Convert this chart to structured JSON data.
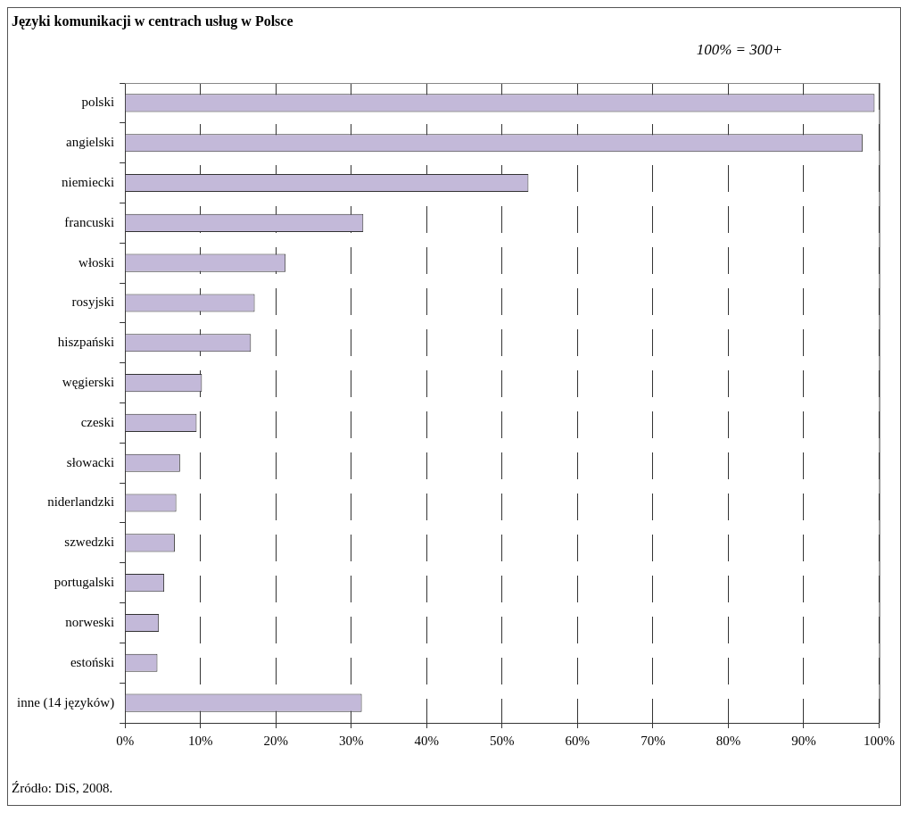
{
  "chart_data": {
    "type": "bar",
    "orientation": "horizontal",
    "title": "Języki komunikacji w centrach usług w Polsce",
    "categories": [
      "polski",
      "angielski",
      "niemiecki",
      "francuski",
      "włoski",
      "rosyjski",
      "hiszpański",
      "węgierski",
      "czeski",
      "słowacki",
      "niderlandzki",
      "szwedzki",
      "portugalski",
      "norweski",
      "estoński",
      "inne (14 języków)"
    ],
    "values": [
      99.4,
      97.8,
      53.5,
      31.6,
      21.3,
      17.2,
      16.7,
      10.2,
      9.5,
      7.3,
      6.8,
      6.6,
      5.2,
      4.5,
      4.3,
      31.4
    ],
    "color": "#c3b9d9",
    "xlim": [
      0,
      100
    ],
    "xticks": [
      {
        "value": 0,
        "label": "0%"
      },
      {
        "value": 10,
        "label": "10%"
      },
      {
        "value": 20,
        "label": "20%"
      },
      {
        "value": 30,
        "label": "30%"
      },
      {
        "value": 40,
        "label": "40%"
      },
      {
        "value": 50,
        "label": "50%"
      },
      {
        "value": 60,
        "label": "60%"
      },
      {
        "value": 70,
        "label": "70%"
      },
      {
        "value": 80,
        "label": "80%"
      },
      {
        "value": 90,
        "label": "90%"
      },
      {
        "value": 100,
        "label": "100%"
      }
    ],
    "grid": "x",
    "legend": false,
    "annotations": [
      "100% = 300+",
      "Źródło: DiS, 2008."
    ]
  }
}
